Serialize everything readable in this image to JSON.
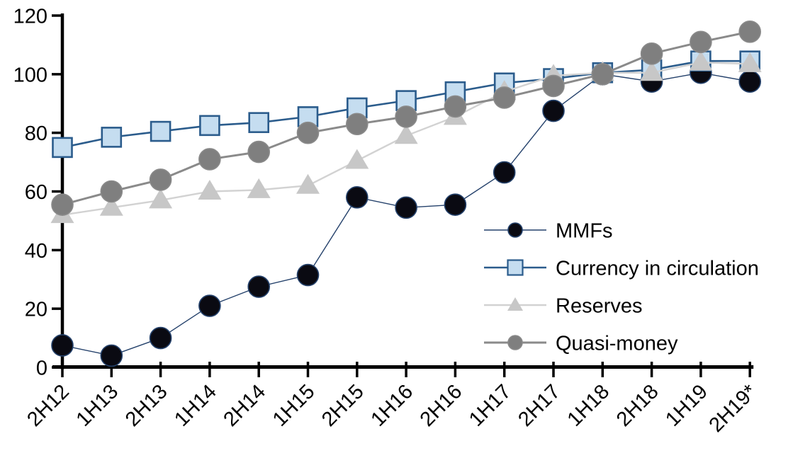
{
  "chart_data": {
    "type": "line",
    "title": "",
    "xlabel": "",
    "ylabel": "",
    "categories": [
      "2H12",
      "1H13",
      "2H13",
      "1H14",
      "2H14",
      "1H15",
      "2H15",
      "1H16",
      "2H16",
      "1H17",
      "2H17",
      "1H18",
      "2H18",
      "1H19",
      "2H19*"
    ],
    "series": [
      {
        "name": "MMFs",
        "marker": "circle",
        "marker_fill": "#0a0a12",
        "marker_stroke": "#24416b",
        "line_color": "#24416b",
        "line_width": 1.4,
        "values": [
          7.5,
          4,
          10,
          21,
          27.5,
          31.5,
          58,
          54.5,
          55.5,
          66.5,
          87.5,
          100,
          97.5,
          100.5,
          97.5
        ]
      },
      {
        "name": "Currency in circulation",
        "marker": "square",
        "marker_fill": "#c5ddf0",
        "marker_stroke": "#2b5c8c",
        "line_color": "#2b5c8c",
        "line_width": 2.6,
        "values": [
          75,
          78.5,
          80.5,
          82.5,
          83.5,
          85.5,
          88.5,
          91,
          94,
          97,
          98.5,
          100.5,
          101.5,
          104.5,
          104.5
        ]
      },
      {
        "name": "Reserves",
        "marker": "triangle",
        "marker_fill": "#c7c7c7",
        "marker_stroke": "#c7c7c7",
        "line_color": "#d2d2d2",
        "line_width": 2.4,
        "values": [
          52,
          54.5,
          57,
          60,
          60.5,
          62,
          70.5,
          79,
          85.5,
          94,
          99.5,
          100.5,
          100.5,
          104,
          103.5
        ]
      },
      {
        "name": "Quasi-money",
        "marker": "circle",
        "marker_fill": "#7f7f7f",
        "marker_stroke": "#8a8a8a",
        "line_color": "#8a8a8a",
        "line_width": 3,
        "values": [
          55.5,
          60,
          64,
          71,
          73.5,
          80,
          83,
          85.5,
          89,
          92,
          96,
          100,
          107,
          111,
          114.5
        ]
      }
    ],
    "ylim": [
      0,
      120
    ],
    "yticks": [
      0,
      20,
      40,
      60,
      80,
      100,
      120
    ],
    "xtick_rotation_deg": 45,
    "grid": false,
    "legend_position": "inside-right",
    "legend": [
      "MMFs",
      "Currency in circulation",
      "Reserves",
      "Quasi-money"
    ],
    "axis_color": "#000000",
    "background_color": "#ffffff"
  }
}
